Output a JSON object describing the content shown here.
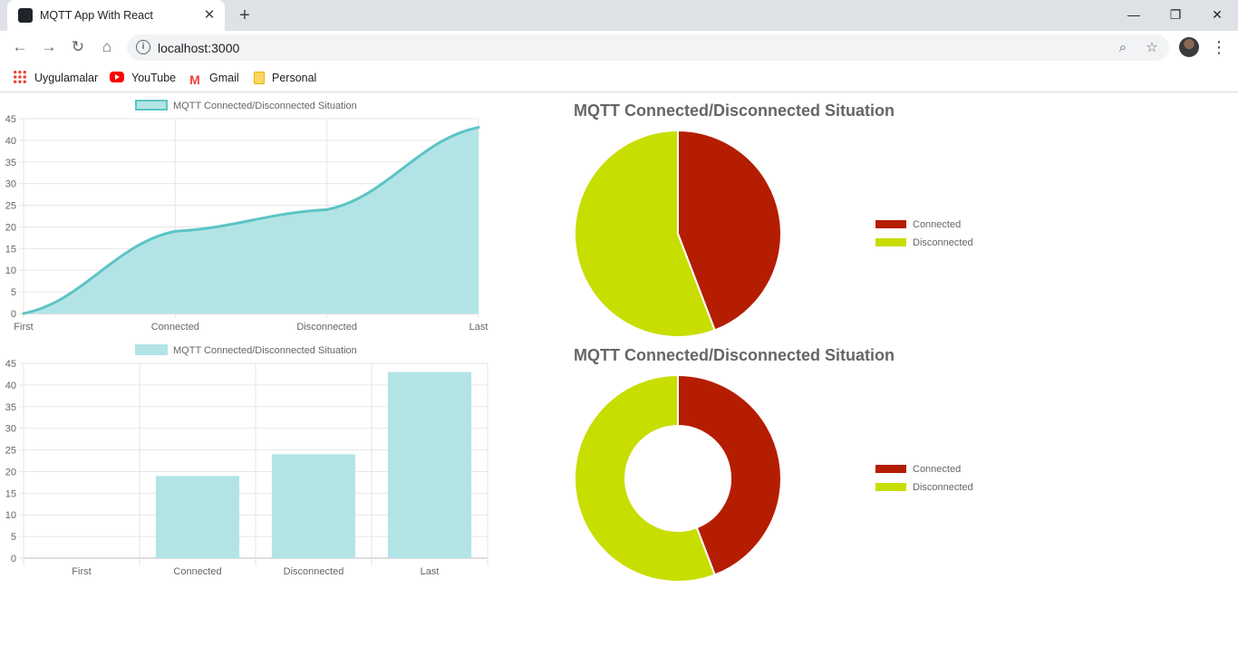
{
  "browser": {
    "tab_title": "MQTT App With React",
    "tab_close": "✕",
    "new_tab": "+",
    "url": "localhost:3000",
    "bookmarks": [
      {
        "label": "Uygulamalar"
      },
      {
        "label": "YouTube"
      },
      {
        "label": "Gmail"
      },
      {
        "label": "Personal"
      }
    ]
  },
  "colors": {
    "line_fill": "#b3e4e5",
    "line_stroke": "#5cc4c4",
    "connected": "#b51d00",
    "disconnected": "#c8dd00",
    "grid": "#e6e6e6",
    "text": "#666666"
  },
  "chart_data": [
    {
      "type": "area",
      "legend": "MQTT Connected/Disconnected Situation",
      "categories": [
        "First",
        "Connected",
        "Disconnected",
        "Last"
      ],
      "values": [
        0,
        19,
        24,
        43
      ],
      "ylim": [
        0,
        45
      ],
      "yticks": [
        0,
        5,
        10,
        15,
        20,
        25,
        30,
        35,
        40,
        45
      ]
    },
    {
      "type": "bar",
      "legend": "MQTT Connected/Disconnected Situation",
      "categories": [
        "First",
        "Connected",
        "Disconnected",
        "Last"
      ],
      "values": [
        0,
        19,
        24,
        43
      ],
      "ylim": [
        0,
        45
      ],
      "yticks": [
        0,
        5,
        10,
        15,
        20,
        25,
        30,
        35,
        40,
        45
      ]
    },
    {
      "type": "pie",
      "title": "MQTT Connected/Disconnected Situation",
      "labels": [
        "Connected",
        "Disconnected"
      ],
      "values": [
        19,
        24
      ]
    },
    {
      "type": "pie",
      "donut": true,
      "title": "MQTT Connected/Disconnected Situation",
      "labels": [
        "Connected",
        "Disconnected"
      ],
      "values": [
        19,
        24
      ]
    }
  ]
}
